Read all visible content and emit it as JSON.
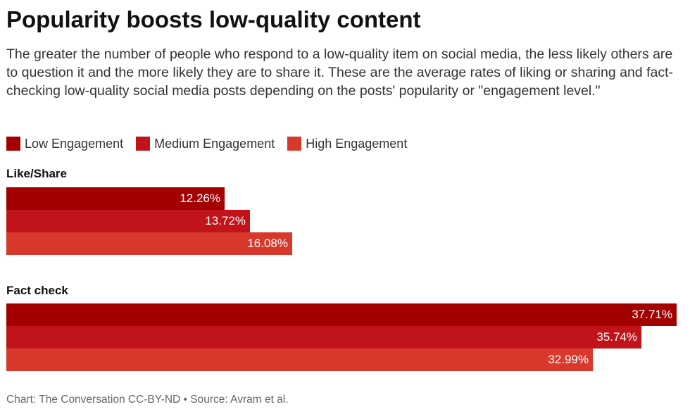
{
  "chart_data": {
    "type": "bar",
    "orientation": "horizontal",
    "title": "Popularity boosts low-quality content",
    "subtitle": "The greater the number of people who respond to a low-quality item on social media, the less likely others are to question it and the more likely they are to share it. These are the average rates of liking or sharing and fact-checking low-quality social media posts depending on the posts' popularity or \"engagement level.\"",
    "categories": [
      "Like/Share",
      "Fact check"
    ],
    "series": [
      {
        "name": "Low Engagement",
        "values": [
          12.26,
          37.71
        ],
        "color": "#a30000"
      },
      {
        "name": "Medium Engagement",
        "values": [
          13.72,
          35.74
        ],
        "color": "#c0141a"
      },
      {
        "name": "High Engagement",
        "values": [
          16.08,
          32.99
        ],
        "color": "#d9382d"
      }
    ],
    "value_suffix": "%",
    "xlim": [
      0,
      38.1
    ],
    "grid": false,
    "legend_position": "top-left",
    "footer": "Chart: The Conversation CC-BY-ND • Source: Avram et al."
  }
}
